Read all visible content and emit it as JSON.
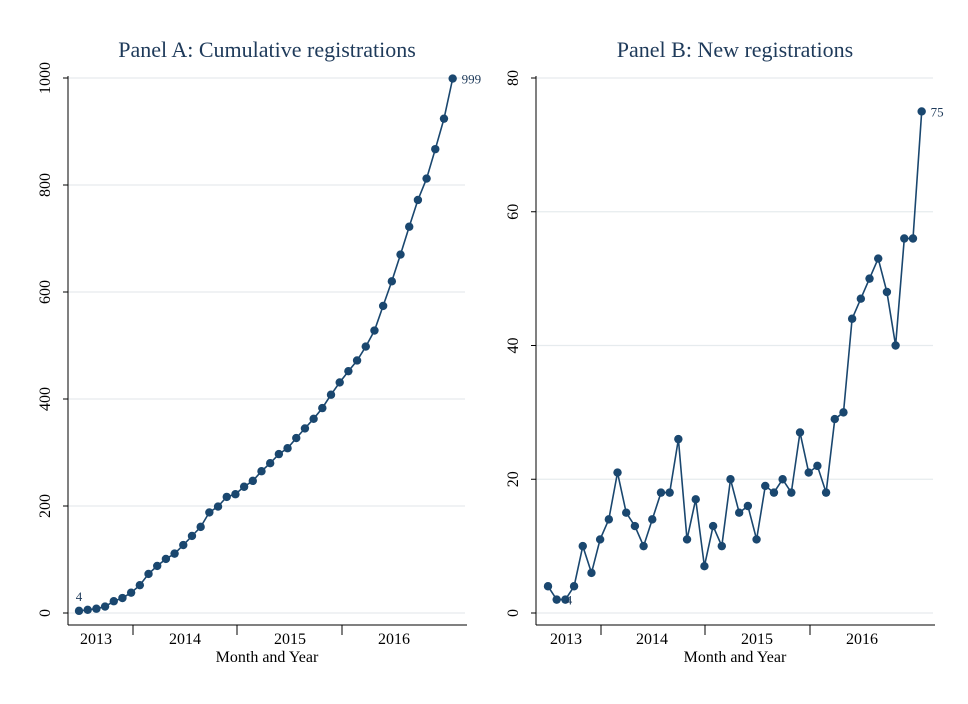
{
  "series_color": "#1a476f",
  "chart_data": [
    {
      "type": "line",
      "title": "Panel A: Cumulative registrations",
      "xlabel": "Month and Year",
      "ylabel": "",
      "x_ticks": [
        "2013",
        "2014",
        "2015",
        "2016"
      ],
      "yticks": [
        0,
        200,
        400,
        600,
        800,
        1000
      ],
      "ylim": [
        0,
        1000
      ],
      "grid": true,
      "marker": "circle",
      "annotations": [
        {
          "index": 0,
          "text": "4",
          "position": "above"
        },
        {
          "index": 45,
          "text": "999",
          "position": "right"
        }
      ],
      "values": [
        4,
        6,
        8,
        12,
        22,
        28,
        38,
        52,
        73,
        88,
        101,
        111,
        127,
        144,
        161,
        188,
        199,
        217,
        222,
        236,
        247,
        265,
        280,
        297,
        308,
        327,
        345,
        363,
        383,
        408,
        431,
        452,
        472,
        498,
        528,
        574,
        620,
        670,
        722,
        772,
        812,
        867,
        924,
        999
      ]
    },
    {
      "type": "line",
      "title": "Panel B: New registrations",
      "xlabel": "Month and Year",
      "ylabel": "",
      "x_ticks": [
        "2013",
        "2014",
        "2015",
        "2016"
      ],
      "yticks": [
        0,
        20,
        40,
        60,
        80
      ],
      "ylim": [
        0,
        80
      ],
      "grid": true,
      "marker": "circle",
      "annotations": [
        {
          "index": 1,
          "text": "4",
          "position": "right"
        },
        {
          "index": 43,
          "text": "75",
          "position": "right"
        }
      ],
      "values": [
        4,
        2,
        2,
        4,
        10,
        6,
        11,
        14,
        21,
        15,
        13,
        10,
        14,
        18,
        18,
        26,
        11,
        17,
        7,
        13,
        10,
        20,
        15,
        16,
        11,
        19,
        18,
        20,
        18,
        27,
        21,
        22,
        18,
        29,
        30,
        44,
        47,
        50,
        53,
        48,
        40,
        56,
        56,
        75
      ]
    }
  ]
}
